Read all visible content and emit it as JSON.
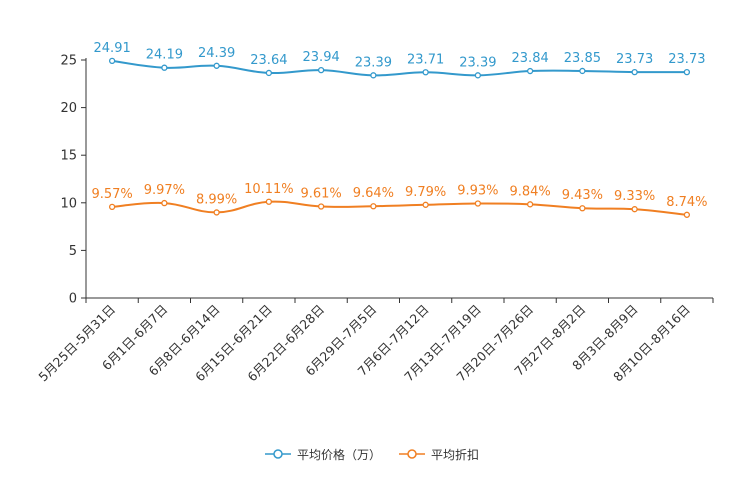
{
  "chart_data": {
    "type": "line",
    "categories": [
      "5月25日-5月31日",
      "6月1日-6月7日",
      "6月8日-6月14日",
      "6月15日-6月21日",
      "6月22日-6月28日",
      "6月29日-7月5日",
      "7月6日-7月12日",
      "7月13日-7月19日",
      "7月20日-7月26日",
      "7月27日-8月2日",
      "8月3日-8月9日",
      "8月10日-8月16日"
    ],
    "series": [
      {
        "name": "平均价格（万）",
        "color": "#3399cc",
        "values": [
          24.91,
          24.19,
          24.39,
          23.64,
          23.94,
          23.39,
          23.71,
          23.39,
          23.84,
          23.85,
          23.73,
          23.73
        ],
        "labels": [
          "24.91",
          "24.19",
          "24.39",
          "23.64",
          "23.94",
          "23.39",
          "23.71",
          "23.39",
          "23.84",
          "23.85",
          "23.73",
          "23.73"
        ]
      },
      {
        "name": "平均折扣",
        "color": "#f07f22",
        "values": [
          9.57,
          9.97,
          8.99,
          10.11,
          9.61,
          9.64,
          9.79,
          9.93,
          9.84,
          9.43,
          9.33,
          8.74
        ],
        "labels": [
          "9.57%",
          "9.97%",
          "8.99%",
          "10.11%",
          "9.61%",
          "9.64%",
          "9.79%",
          "9.93%",
          "9.84%",
          "9.43%",
          "9.33%",
          "8.74%"
        ]
      }
    ],
    "yticks": [
      "0",
      "5",
      "10",
      "15",
      "20",
      "25"
    ],
    "ylim": [
      0,
      25
    ],
    "title": "",
    "xlabel": "",
    "ylabel": "",
    "grid": false,
    "legend_position": "bottom"
  }
}
